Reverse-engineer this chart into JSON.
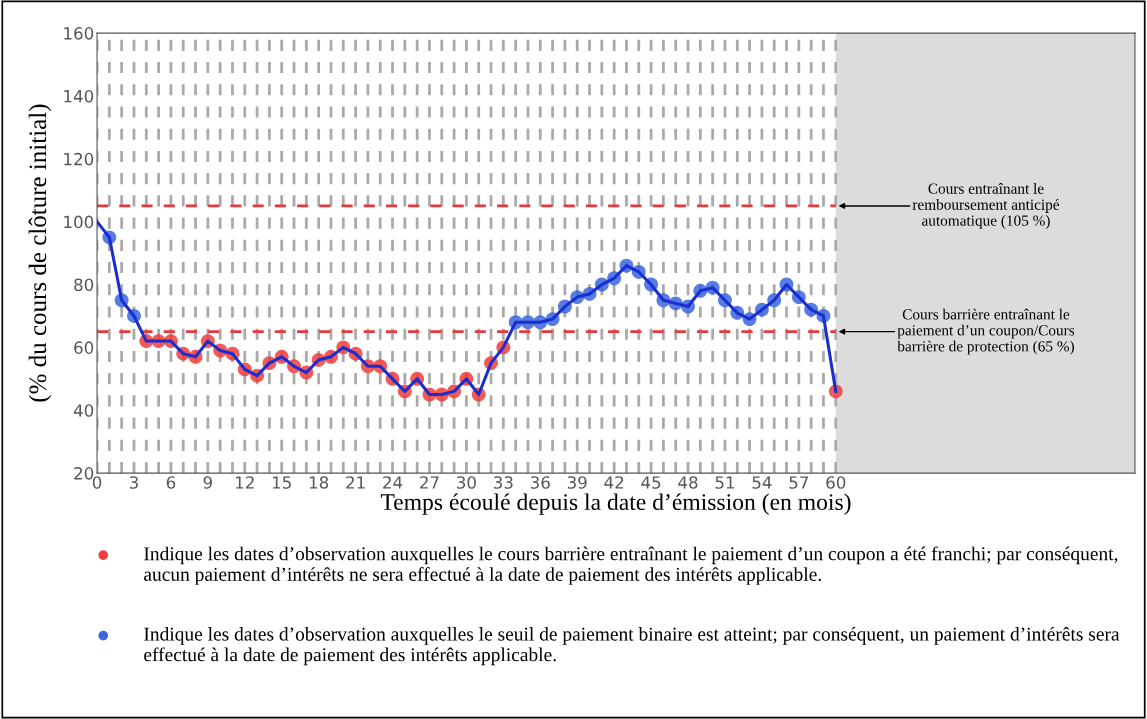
{
  "chart_data": {
    "type": "line",
    "ylabel": "(% du cours de clôture initial)",
    "xlabel": "Temps écoulé depuis la date d’émission (en mois)",
    "x": [
      0,
      1,
      2,
      3,
      4,
      5,
      6,
      7,
      8,
      9,
      10,
      11,
      12,
      13,
      14,
      15,
      16,
      17,
      18,
      19,
      20,
      21,
      22,
      23,
      24,
      25,
      26,
      27,
      28,
      29,
      30,
      31,
      32,
      33,
      34,
      35,
      36,
      37,
      38,
      39,
      40,
      41,
      42,
      43,
      44,
      45,
      46,
      47,
      48,
      49,
      50,
      51,
      52,
      53,
      54,
      55,
      56,
      57,
      58,
      59,
      60
    ],
    "series": [
      {
        "color": "#1a2ed0",
        "marker": "none",
        "values": [
          100,
          95,
          75,
          70,
          62,
          62,
          62,
          58,
          57,
          62,
          59,
          58,
          53,
          51,
          55,
          57,
          54,
          52,
          56,
          57,
          60,
          58,
          54,
          54,
          50,
          46,
          50,
          45,
          45,
          46,
          50,
          45,
          55,
          60,
          68,
          68,
          68,
          69,
          73,
          76,
          77,
          80,
          82,
          86,
          84,
          80,
          75,
          74,
          73,
          78,
          79,
          75,
          71,
          69,
          72,
          75,
          80,
          76,
          72,
          70,
          46
        ]
      },
      {
        "type": "scatter",
        "name": "Indique les dates d’observation auxquelles le cours barrière entraînant le paiement d’un coupon a été franchi; par conséquent, aucun paiement d’intérêts ne sera effectué à la date de paiement des intérêts applicable.",
        "color": "#f03c3c",
        "marker": "circle",
        "values": [
          null,
          null,
          null,
          null,
          62,
          62,
          62,
          58,
          57,
          62,
          59,
          58,
          53,
          51,
          55,
          57,
          54,
          52,
          56,
          57,
          60,
          58,
          54,
          54,
          50,
          46,
          50,
          45,
          45,
          46,
          50,
          45,
          55,
          60,
          null,
          null,
          null,
          null,
          null,
          null,
          null,
          null,
          null,
          null,
          null,
          null,
          null,
          null,
          null,
          null,
          null,
          null,
          null,
          null,
          null,
          null,
          null,
          null,
          null,
          null,
          46
        ]
      },
      {
        "type": "scatter",
        "name": "Indique les dates d’observation auxquelles le seuil de paiement binaire est atteint; par conséquent, un paiement d’intérêts sera effectué à la date de paiement des intérêts applicable.",
        "color": "#3a66e0",
        "marker": "circle",
        "values": [
          null,
          95,
          75,
          70,
          null,
          null,
          null,
          null,
          null,
          null,
          null,
          null,
          null,
          null,
          null,
          null,
          null,
          null,
          null,
          null,
          null,
          null,
          null,
          null,
          null,
          null,
          null,
          null,
          null,
          null,
          null,
          null,
          null,
          null,
          68,
          68,
          68,
          69,
          73,
          76,
          77,
          80,
          82,
          86,
          84,
          80,
          75,
          74,
          73,
          78,
          79,
          75,
          71,
          69,
          72,
          75,
          80,
          76,
          72,
          70,
          null
        ]
      }
    ],
    "xlim": [
      0,
      84.3
    ],
    "xticks": [
      0,
      {
        "value": 1,
        "label": null
      },
      {
        "value": 2,
        "label": null
      },
      3,
      {
        "value": 4,
        "label": null
      },
      {
        "value": 5,
        "label": null
      },
      6,
      {
        "value": 7,
        "label": null
      },
      {
        "value": 8,
        "label": null
      },
      9,
      {
        "value": 10,
        "label": null
      },
      {
        "value": 11,
        "label": null
      },
      12,
      {
        "value": 13,
        "label": null
      },
      {
        "value": 14,
        "label": null
      },
      15,
      {
        "value": 16,
        "label": null
      },
      {
        "value": 17,
        "label": null
      },
      18,
      {
        "value": 19,
        "label": null
      },
      {
        "value": 20,
        "label": null
      },
      21,
      {
        "value": 22,
        "label": null
      },
      {
        "value": 23,
        "label": null
      },
      24,
      {
        "value": 25,
        "label": null
      },
      {
        "value": 26,
        "label": null
      },
      27,
      {
        "value": 28,
        "label": null
      },
      {
        "value": 29,
        "label": null
      },
      30,
      {
        "value": 31,
        "label": null
      },
      {
        "value": 32,
        "label": null
      },
      33,
      {
        "value": 34,
        "label": null
      },
      {
        "value": 35,
        "label": null
      },
      36,
      {
        "value": 37,
        "label": null
      },
      {
        "value": 38,
        "label": null
      },
      39,
      {
        "value": 40,
        "label": null
      },
      {
        "value": 41,
        "label": null
      },
      42,
      {
        "value": 43,
        "label": null
      },
      {
        "value": 44,
        "label": null
      },
      45,
      {
        "value": 46,
        "label": null
      },
      {
        "value": 47,
        "label": null
      },
      48,
      {
        "value": 49,
        "label": null
      },
      {
        "value": 50,
        "label": null
      },
      51,
      {
        "value": 52,
        "label": null
      },
      {
        "value": 53,
        "label": null
      },
      54,
      {
        "value": 55,
        "label": null
      },
      {
        "value": 56,
        "label": null
      },
      57,
      {
        "value": 58,
        "label": null
      },
      {
        "value": 59,
        "label": null
      },
      60
    ],
    "ylim": [
      20,
      160
    ],
    "yticks": [
      20,
      40,
      60,
      80,
      100,
      120,
      140,
      160
    ],
    "grid": "x",
    "ref_lines": [
      {
        "axis": "y",
        "value": 105,
        "color": "#e8383d",
        "line_style": "dashed"
      },
      {
        "axis": "y",
        "value": 65,
        "color": "#e8383d",
        "line_style": "dashed"
      }
    ],
    "bands": [
      {
        "axis": "x",
        "from": 60,
        "to": 84.3,
        "color": "#dcdcdc"
      }
    ],
    "annotations": [
      {
        "text": "Cours entraînant le\nremboursement anticipé\nautomatique (105 %)",
        "x": 60,
        "y": 105
      },
      {
        "text": "Cours barrière entraînant le\npaiement d’un coupon/Cours\nbarrière de protection (65 %)",
        "x": 60,
        "y": 65
      }
    ],
    "legend": "bottom"
  }
}
